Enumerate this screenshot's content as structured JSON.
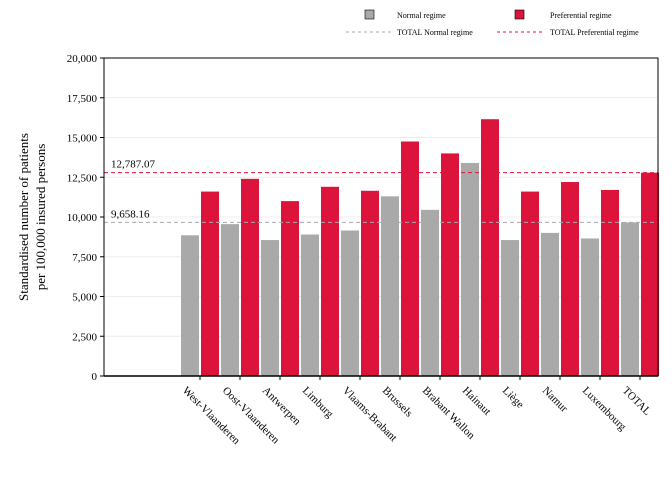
{
  "chart_data": {
    "type": "bar",
    "categories": [
      "West-Vlaanderen",
      "Oost-Vlaanderen",
      "Antwerpen",
      "Limburg",
      "Vlaams-Brabant",
      "Brussels",
      "Brabant Wallon",
      "Hainaut",
      "Liège",
      "Namur",
      "Luxembourg",
      "TOTAL"
    ],
    "series": [
      {
        "name": "Normal regime",
        "color": "#a9a9a9",
        "values": [
          8850,
          9550,
          8550,
          8900,
          9150,
          11300,
          10450,
          13400,
          8550,
          9000,
          8650,
          9658.16
        ]
      },
      {
        "name": "Preferential regime",
        "color": "#dc143c",
        "values": [
          11600,
          12400,
          11000,
          11900,
          11650,
          14750,
          14000,
          16150,
          11600,
          12200,
          11700,
          12787.07
        ]
      }
    ],
    "reference_lines": [
      {
        "name": "TOTAL Normal regime",
        "value": 9658.16,
        "label": "9,658.16",
        "color": "#a9a9a9"
      },
      {
        "name": "TOTAL Preferential regime",
        "value": 12787.07,
        "label": "12,787.07",
        "color": "#dc143c"
      }
    ],
    "ylabel": [
      "Standardised number of patients",
      "per 100,000 insured persons"
    ],
    "xlabel": "",
    "ylim": [
      0,
      20000
    ],
    "yticks": [
      0,
      2500,
      5000,
      7500,
      10000,
      12500,
      15000,
      17500,
      20000
    ],
    "ytick_labels": [
      "0",
      "2,500",
      "5,000",
      "7,500",
      "10,000",
      "12,500",
      "15,000",
      "17,500",
      "20,000"
    ],
    "grid": true,
    "legend_position": "top"
  }
}
